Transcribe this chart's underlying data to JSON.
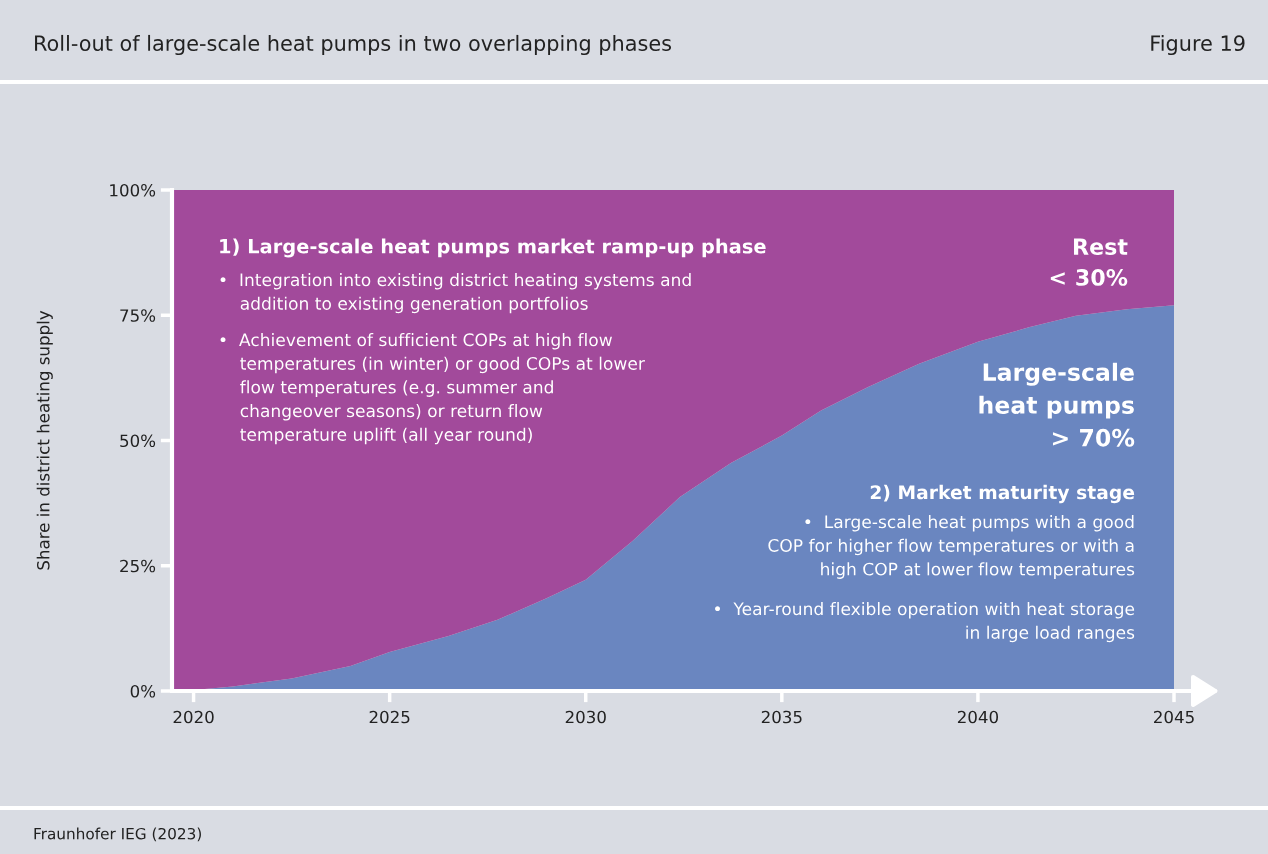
{
  "chart_data": {
    "type": "area",
    "stacked": true,
    "title": "Roll-out of large-scale heat pumps in two overlapping phases",
    "ylabel": "Share in district heating supply",
    "x": [
      2019.45,
      2020,
      2021,
      2022.5,
      2024,
      2025,
      2026.5,
      2027.75,
      2029,
      2030,
      2031.2,
      2032.4,
      2033.7,
      2035,
      2036,
      2037.2,
      2038.5,
      2040,
      2041.3,
      2042.5,
      2043.8,
      2045
    ],
    "series": [
      {
        "color": "#6a86c0",
        "values": [
          0,
          0.2,
          0.9,
          2.5,
          5,
          7.8,
          11,
          14.2,
          18.5,
          22.2,
          30,
          38.7,
          45.5,
          51,
          56,
          60.7,
          65.3,
          69.7,
          72.6,
          74.9,
          76.2,
          77
        ]
      },
      {
        "color": "#a24a9b",
        "values": [
          100,
          99.8,
          99.1,
          97.5,
          95,
          92.2,
          89,
          85.8,
          81.5,
          77.8,
          70,
          61.3,
          54.5,
          49,
          44,
          39.3,
          34.7,
          30.3,
          27.4,
          25.1,
          23.8,
          23
        ]
      }
    ],
    "xlim": [
      2019.45,
      2045
    ],
    "xticks": [
      2020,
      2025,
      2030,
      2035,
      2040,
      2045
    ],
    "ylim": [
      0,
      100
    ],
    "yticks": [
      {
        "value": 0,
        "label": "0%"
      },
      {
        "value": 25,
        "label": "25%"
      },
      {
        "value": 50,
        "label": "50%"
      },
      {
        "value": 75,
        "label": "75%"
      },
      {
        "value": 100,
        "label": "100%"
      }
    ],
    "grid": false,
    "legend": false,
    "annotations": [
      "1) Large-scale heat pumps market ramp-up phase",
      "•  Integration into existing district heating systems and\n    addition to existing generation portfolios",
      "•  Achievement of sufficient COPs at high flow\n    temperatures (in winter) or good COPs at lower\n    flow temperatures (e.g. summer and\n    changeover seasons) or return flow\n    temperature uplift (all year round)",
      "Rest\n< 30%",
      "Large-scale\nheat pumps\n> 70%",
      "2) Market maturity stage",
      "•  Large-scale heat pumps with a good\nCOP for higher flow temperatures or with a\nhigh COP at lower flow temperatures",
      "•  Year-round flexible operation with heat storage\nin large load ranges",
      "Fraunhofer IEG (2023)",
      "Figure 19"
    ]
  }
}
